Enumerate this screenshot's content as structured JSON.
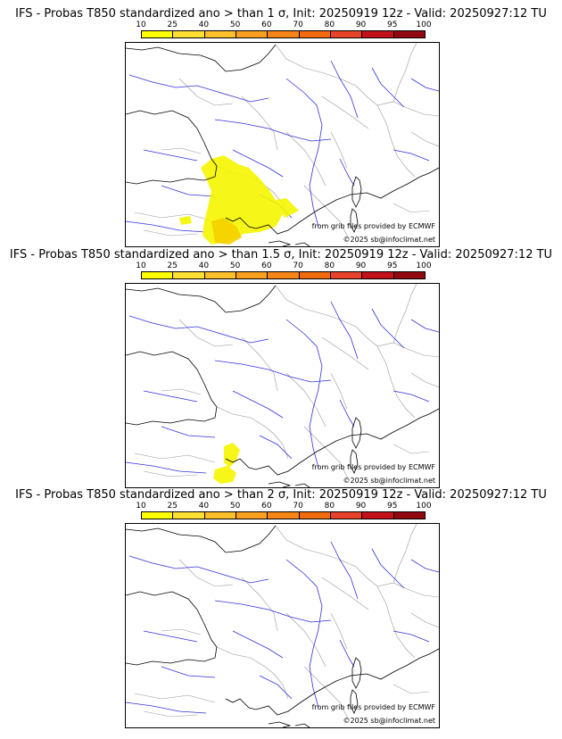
{
  "colorbar": {
    "ticks": [
      "10",
      "25",
      "40",
      "50",
      "60",
      "70",
      "80",
      "90",
      "95",
      "100"
    ],
    "colors": [
      "#ffff00",
      "#fde031",
      "#fbc02a",
      "#f9a020",
      "#f58516",
      "#f26a0e",
      "#e8432a",
      "#c3111a",
      "#910811",
      "#5a0707"
    ]
  },
  "colors": {
    "rivers": "#3232dc",
    "borders": "#999999",
    "coast": "#000000",
    "prob_low": "#f5f500",
    "prob_mid": "#f5d000"
  },
  "credit": {
    "source": "from grib files provided by ECMWF",
    "copyright": "©2025 sb@infoclimat.net"
  },
  "panels": [
    {
      "title": "IFS - Probas T850  standardized ano > than 1 σ, Init: 20250919 12z - Valid: 20250927:12 TU",
      "anomaly_threshold": "1 σ",
      "has_signal": true
    },
    {
      "title": "IFS - Probas T850  standardized ano > than 1.5 σ, Init: 20250919 12z - Valid: 20250927:12 TU",
      "anomaly_threshold": "1.5 σ",
      "has_signal": true
    },
    {
      "title": "IFS - Probas T850  standardized ano > than 2 σ, Init: 20250919 12z - Valid: 20250927:12 TU",
      "anomaly_threshold": "2 σ",
      "has_signal": false
    }
  ]
}
